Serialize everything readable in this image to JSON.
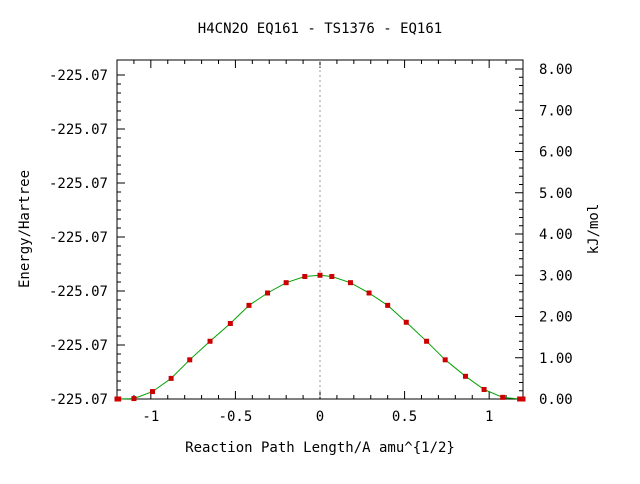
{
  "chart_data": {
    "type": "line",
    "title": "H4CN2O   EQ161 - TS1376 - EQ161",
    "xlabel": "Reaction Path Length/A amu^{1/2}",
    "ylabel": "Energy/Hartree",
    "ylabel_right": "kJ/mol",
    "xlim": [
      -1.2,
      1.2
    ],
    "ylim_right": [
      0.0,
      8.0
    ],
    "x_ticks": [
      -1,
      -0.5,
      0,
      0.5,
      1
    ],
    "x_tick_labels": [
      "-1",
      "-0.5",
      "0",
      "0.5",
      "1"
    ],
    "y_tick_labels_left": [
      "-225.07",
      "-225.07",
      "-225.07",
      "-225.07",
      "-225.07",
      "-225.07",
      "-225.07"
    ],
    "y_ticks_right": [
      0,
      1,
      2,
      3,
      4,
      5,
      6,
      7,
      8
    ],
    "y_tick_labels_right": [
      "0.00",
      "1.00",
      "2.00",
      "3.00",
      "4.00",
      "5.00",
      "6.00",
      "7.00",
      "8.00"
    ],
    "ts_marker_x": 0,
    "curve_color": "#00a000",
    "point_color": "#cc0000",
    "points": [
      {
        "x": -1.2,
        "y": 0.0
      },
      {
        "x": -1.19,
        "y": 0.0
      },
      {
        "x": -1.1,
        "y": 0.01
      },
      {
        "x": -0.99,
        "y": 0.18
      },
      {
        "x": -0.88,
        "y": 0.5
      },
      {
        "x": -0.77,
        "y": 0.95
      },
      {
        "x": -0.65,
        "y": 1.4
      },
      {
        "x": -0.53,
        "y": 1.83
      },
      {
        "x": -0.42,
        "y": 2.27
      },
      {
        "x": -0.31,
        "y": 2.57
      },
      {
        "x": -0.2,
        "y": 2.82
      },
      {
        "x": -0.09,
        "y": 2.97
      },
      {
        "x": 0.0,
        "y": 3.0
      },
      {
        "x": 0.07,
        "y": 2.97
      },
      {
        "x": 0.18,
        "y": 2.82
      },
      {
        "x": 0.29,
        "y": 2.57
      },
      {
        "x": 0.4,
        "y": 2.27
      },
      {
        "x": 0.51,
        "y": 1.86
      },
      {
        "x": 0.63,
        "y": 1.4
      },
      {
        "x": 0.74,
        "y": 0.95
      },
      {
        "x": 0.86,
        "y": 0.55
      },
      {
        "x": 0.97,
        "y": 0.23
      },
      {
        "x": 1.08,
        "y": 0.04
      },
      {
        "x": 1.18,
        "y": 0.0
      },
      {
        "x": 1.2,
        "y": 0.0
      }
    ]
  }
}
